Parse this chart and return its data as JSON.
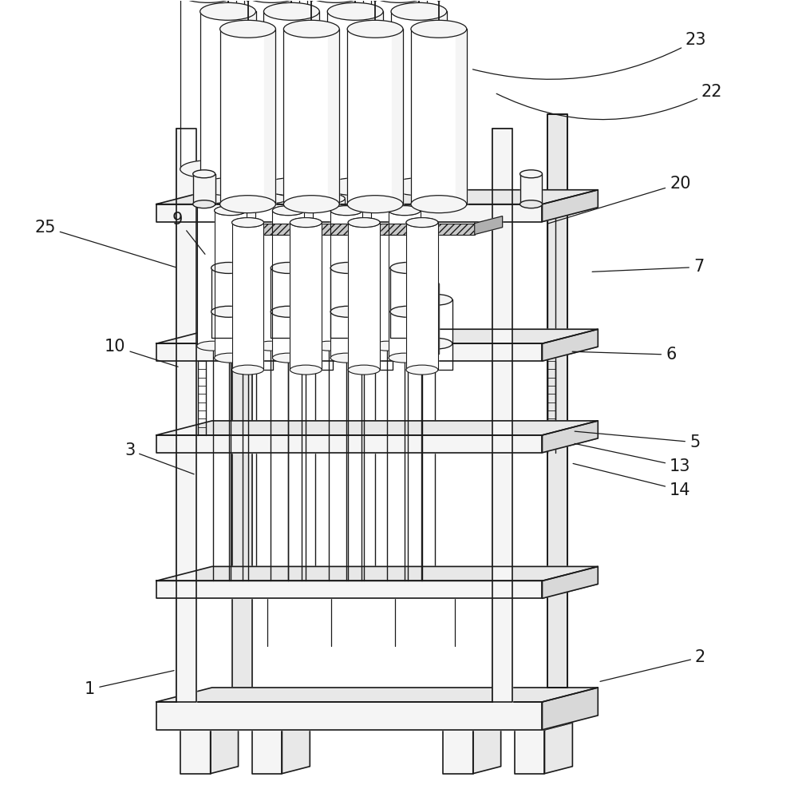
{
  "figure_width": 10.0,
  "figure_height": 9.93,
  "dpi": 100,
  "bg_color": "#ffffff",
  "line_color": "#1a1a1a",
  "fill_light": "#f5f5f5",
  "fill_mid": "#e8e8e8",
  "fill_dark": "#d8d8d8",
  "fill_white": "#ffffff",
  "lw_main": 1.2,
  "lw_thin": 0.7,
  "label_fontsize": 15
}
